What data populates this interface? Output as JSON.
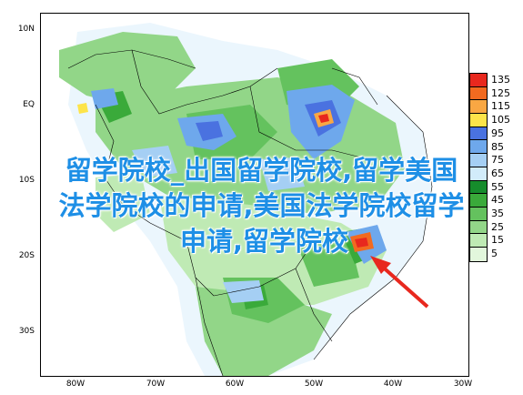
{
  "map": {
    "lat_labels": [
      "10N",
      "EQ",
      "10S",
      "20S",
      "30S"
    ],
    "lon_labels": [
      "80W",
      "70W",
      "60W",
      "50W",
      "40W",
      "30W"
    ]
  },
  "legend": {
    "values": [
      "135",
      "125",
      "115",
      "105",
      "95",
      "85",
      "75",
      "65",
      "55",
      "45",
      "35",
      "25",
      "15",
      "5"
    ],
    "colors": [
      "#e8281e",
      "#f26a20",
      "#f9a743",
      "#fde44a",
      "#4a72e0",
      "#6ea8ec",
      "#a5cff4",
      "#d2ecfa",
      "#168c2c",
      "#3aaa3a",
      "#64c25e",
      "#92d688",
      "#bfeab4",
      "#e2f7dc"
    ]
  },
  "overlay": {
    "line1": "留学院校_出国留学院校,留学美国",
    "line2": "法学院校的申请,美国法学院校留学",
    "line3": "申请,留学院校"
  }
}
